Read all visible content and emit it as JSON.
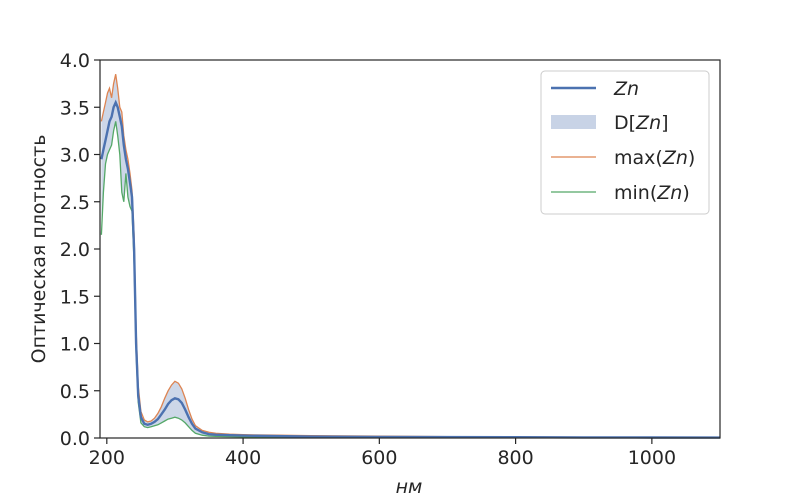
{
  "chart_data": {
    "type": "line",
    "title": "",
    "xlabel": "нм",
    "ylabel": "Оптическая плотность",
    "xlim": [
      190,
      1100
    ],
    "ylim": [
      0,
      4.0
    ],
    "x_ticks": [
      200,
      400,
      600,
      800,
      1000
    ],
    "x_tick_labels": [
      "200",
      "400",
      "600",
      "800",
      "1000"
    ],
    "y_ticks": [
      0,
      0.5,
      1.0,
      1.5,
      2.0,
      2.5,
      3.0,
      3.5,
      4.0
    ],
    "y_tick_labels": [
      "0.0",
      "0.5",
      "1.0",
      "1.5",
      "2.0",
      "2.5",
      "3.0",
      "3.5",
      "4.0"
    ],
    "grid": false,
    "legend_position": "top-right",
    "legend": {
      "mean_italic": "Zn",
      "band_prefix": "D[",
      "band_italic": "Zn",
      "band_suffix": "]",
      "max_prefix": "max(",
      "max_italic": "Zn",
      "max_suffix": ")",
      "min_prefix": "min(",
      "min_italic": "Zn",
      "min_suffix": ")"
    },
    "colors": {
      "mean": "#4c72b0",
      "band": "#c8d3e6",
      "max": "#dd8452",
      "min": "#55a868"
    },
    "x": [
      192,
      195,
      198,
      201,
      204,
      207,
      210,
      213,
      216,
      219,
      222,
      225,
      228,
      231,
      234,
      237,
      240,
      243,
      246,
      250,
      255,
      260,
      265,
      270,
      275,
      280,
      285,
      290,
      295,
      300,
      305,
      310,
      315,
      320,
      325,
      330,
      340,
      350,
      360,
      380,
      400,
      450,
      500,
      600,
      700,
      800,
      900,
      1000,
      1100
    ],
    "series": [
      {
        "key": "mean",
        "values": [
          2.95,
          3.05,
          3.15,
          3.25,
          3.35,
          3.4,
          3.5,
          3.55,
          3.5,
          3.4,
          3.3,
          3.1,
          2.95,
          2.85,
          2.7,
          2.55,
          2.0,
          1.0,
          0.45,
          0.22,
          0.15,
          0.14,
          0.15,
          0.17,
          0.2,
          0.25,
          0.3,
          0.36,
          0.4,
          0.42,
          0.41,
          0.37,
          0.3,
          0.22,
          0.15,
          0.1,
          0.06,
          0.04,
          0.035,
          0.03,
          0.025,
          0.02,
          0.015,
          0.012,
          0.01,
          0.008,
          0.006,
          0.005,
          0.004
        ]
      },
      {
        "key": "max",
        "values": [
          3.35,
          3.45,
          3.55,
          3.65,
          3.7,
          3.6,
          3.75,
          3.85,
          3.7,
          3.5,
          3.45,
          3.2,
          3.05,
          2.95,
          2.8,
          2.62,
          2.15,
          1.15,
          0.55,
          0.28,
          0.19,
          0.17,
          0.18,
          0.21,
          0.26,
          0.33,
          0.42,
          0.5,
          0.56,
          0.6,
          0.58,
          0.52,
          0.42,
          0.3,
          0.2,
          0.13,
          0.08,
          0.06,
          0.05,
          0.04,
          0.035,
          0.03,
          0.025,
          0.02,
          0.015,
          0.012,
          0.01,
          0.008,
          0.007
        ]
      },
      {
        "key": "min",
        "values": [
          2.15,
          2.6,
          2.9,
          3.0,
          3.05,
          3.1,
          3.25,
          3.35,
          3.2,
          3.0,
          2.6,
          2.5,
          2.8,
          2.55,
          2.45,
          2.4,
          1.85,
          0.9,
          0.38,
          0.16,
          0.12,
          0.11,
          0.12,
          0.13,
          0.14,
          0.16,
          0.18,
          0.2,
          0.21,
          0.22,
          0.21,
          0.19,
          0.16,
          0.12,
          0.08,
          0.05,
          0.03,
          0.02,
          0.018,
          0.015,
          0.012,
          0.01,
          0.008,
          0.006,
          0.005,
          0.004,
          0.003,
          0.003,
          0.002
        ]
      }
    ]
  }
}
